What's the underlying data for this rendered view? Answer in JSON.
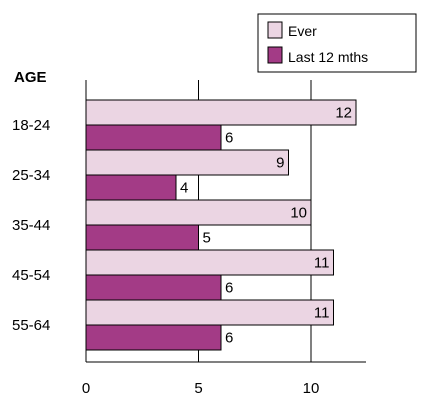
{
  "chart_data": {
    "type": "bar",
    "orientation": "horizontal",
    "category_axis_title": "AGE",
    "categories": [
      "18-24",
      "25-34",
      "35-44",
      "45-54",
      "55-64"
    ],
    "series": [
      {
        "name": "Ever",
        "values": [
          12,
          9,
          10,
          11,
          11
        ],
        "color": "#ebd5e3"
      },
      {
        "name": "Last 12 mths",
        "values": [
          6,
          4,
          5,
          6,
          6
        ],
        "color": "#a33b86"
      }
    ],
    "xlim": [
      0,
      12.3
    ],
    "xticks": [
      "0",
      "5",
      "10"
    ],
    "grid": true,
    "legend": "top-right",
    "data_labels": true
  }
}
